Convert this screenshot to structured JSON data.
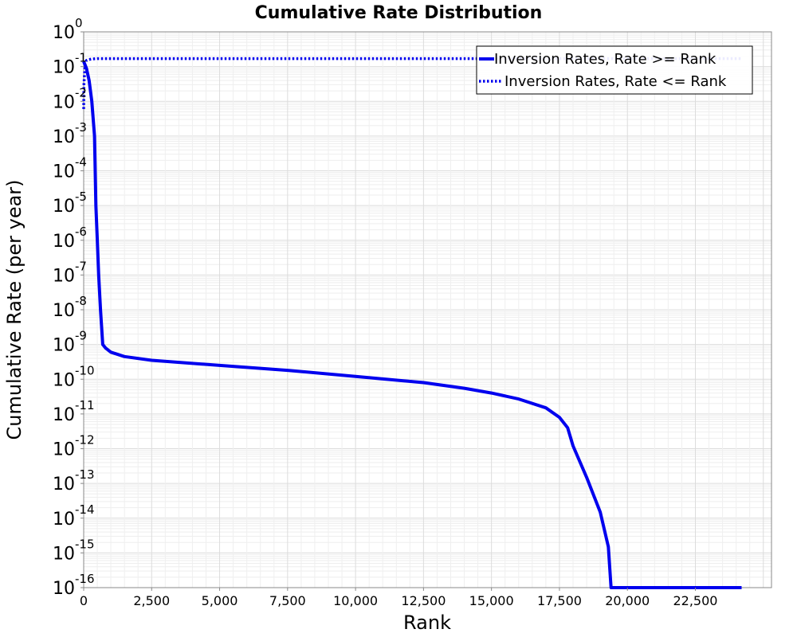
{
  "chart_data": {
    "type": "line",
    "title": "Cumulative Rate Distribution",
    "xlabel": "Rank",
    "ylabel": "Cumulative Rate (per year)",
    "xlim": [
      0,
      25300
    ],
    "ylim_exponents": [
      -16,
      0
    ],
    "y_scale": "log",
    "grid": true,
    "legend_position": "top-right",
    "x_ticks": [
      0,
      2500,
      5000,
      7500,
      10000,
      12500,
      15000,
      17500,
      20000,
      22500
    ],
    "x_tick_labels": [
      "0",
      "2,500",
      "5,000",
      "7,500",
      "10,000",
      "12,500",
      "15,000",
      "17,500",
      "20,000",
      "22,500"
    ],
    "y_tick_exponents": [
      0,
      -1,
      -2,
      -3,
      -4,
      -5,
      -6,
      -7,
      -8,
      -9,
      -10,
      -11,
      -12,
      -13,
      -14,
      -15,
      -16
    ],
    "y_tick_base": "10",
    "series": [
      {
        "name": "Inversion Rates, Rate >= Rank",
        "style": "solid",
        "color": "#0000ee",
        "x": [
          0,
          100,
          200,
          300,
          400,
          450,
          500,
          550,
          620,
          700,
          800,
          1000,
          1500,
          2500,
          5000,
          7500,
          10000,
          12500,
          14000,
          15000,
          16000,
          17000,
          17500,
          17800,
          18000,
          18500,
          19000,
          19300,
          19400,
          19450,
          19500,
          20000,
          22500,
          24200
        ],
        "y": [
          0.14,
          0.09,
          0.04,
          0.01,
          0.001,
          1e-05,
          1e-06,
          1e-07,
          1e-08,
          1e-09,
          8e-10,
          6e-10,
          4.5e-10,
          3.5e-10,
          2.5e-10,
          1.8e-10,
          1.2e-10,
          8e-11,
          5.5e-11,
          4e-11,
          2.7e-11,
          1.5e-11,
          8e-12,
          4e-12,
          1.2e-12,
          1.5e-13,
          1.5e-14,
          1.5e-15,
          1e-16,
          1e-16,
          1e-16,
          1e-16,
          1e-16,
          1e-16
        ]
      },
      {
        "name": "Inversion Rates, Rate <= Rank",
        "style": "dotted",
        "color": "#0000ee",
        "x": [
          0,
          10,
          50,
          100,
          200,
          300,
          500,
          1000,
          5000,
          10000,
          15000,
          20000,
          24200
        ],
        "y": [
          0.006,
          0.03,
          0.12,
          0.15,
          0.16,
          0.165,
          0.17,
          0.17,
          0.17,
          0.17,
          0.17,
          0.17,
          0.17
        ]
      }
    ]
  }
}
